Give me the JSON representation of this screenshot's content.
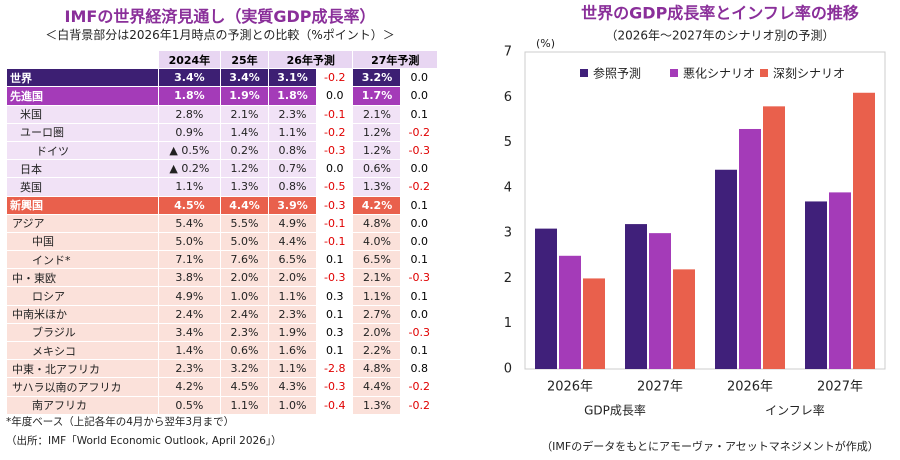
{
  "table": {
    "title": "IMFの世界経済見通し（実質GDP成長率）",
    "subtitle": "＜白背景部分は2026年1月時点の予測との比較（%ポイント）＞",
    "headers": [
      "2024年",
      "25年",
      "26年予測",
      "27年予測"
    ],
    "rows": [
      {
        "name": "世界",
        "values": [
          "3.4%",
          "3.4%",
          "3.1%",
          "-0.2",
          "3.2%",
          "0.0"
        ]
      },
      {
        "name": "先進国",
        "values": [
          "1.8%",
          "1.9%",
          "1.8%",
          "0.0",
          "1.7%",
          "0.0"
        ]
      },
      {
        "name": "米国",
        "values": [
          "2.8%",
          "2.1%",
          "2.3%",
          "-0.1",
          "2.1%",
          "0.1"
        ]
      },
      {
        "name": "ユーロ圏",
        "values": [
          "0.9%",
          "1.4%",
          "1.1%",
          "-0.2",
          "1.2%",
          "-0.2"
        ]
      },
      {
        "name": "ドイツ",
        "values": [
          "▲ 0.5%",
          "0.2%",
          "0.8%",
          "-0.3",
          "1.2%",
          "-0.3"
        ]
      },
      {
        "name": "日本",
        "values": [
          "▲ 0.2%",
          "1.2%",
          "0.7%",
          "0.0",
          "0.6%",
          "0.0"
        ]
      },
      {
        "name": "英国",
        "values": [
          "1.1%",
          "1.3%",
          "0.8%",
          "-0.5",
          "1.3%",
          "-0.2"
        ]
      },
      {
        "name": "新興国",
        "values": [
          "4.5%",
          "4.4%",
          "3.9%",
          "-0.3",
          "4.2%",
          "0.1"
        ]
      },
      {
        "name": "アジア",
        "values": [
          "5.4%",
          "5.5%",
          "4.9%",
          "-0.1",
          "4.8%",
          "0.0"
        ]
      },
      {
        "name": "中国",
        "values": [
          "5.0%",
          "5.0%",
          "4.4%",
          "-0.1",
          "4.0%",
          "0.0"
        ]
      },
      {
        "name": "インド*",
        "values": [
          "7.1%",
          "7.6%",
          "6.5%",
          "0.1",
          "6.5%",
          "0.1"
        ]
      },
      {
        "name": "中・東欧",
        "values": [
          "3.8%",
          "2.0%",
          "2.0%",
          "-0.3",
          "2.1%",
          "-0.3"
        ]
      },
      {
        "name": "ロシア",
        "values": [
          "4.9%",
          "1.0%",
          "1.1%",
          "0.3",
          "1.1%",
          "0.1"
        ]
      },
      {
        "name": "中南米ほか",
        "values": [
          "2.4%",
          "2.4%",
          "2.3%",
          "0.1",
          "2.7%",
          "0.0"
        ]
      },
      {
        "name": "ブラジル",
        "values": [
          "3.4%",
          "2.3%",
          "1.9%",
          "0.3",
          "2.0%",
          "-0.3"
        ]
      },
      {
        "name": "メキシコ",
        "values": [
          "1.4%",
          "0.6%",
          "1.6%",
          "0.1",
          "2.2%",
          "0.1"
        ]
      },
      {
        "name": "中東・北アフリカ",
        "values": [
          "2.3%",
          "3.2%",
          "1.1%",
          "-2.8",
          "4.8%",
          "0.8"
        ]
      },
      {
        "name": "サハラ以南のアフリカ",
        "values": [
          "4.2%",
          "4.5%",
          "4.3%",
          "-0.3",
          "4.4%",
          "-0.2"
        ]
      },
      {
        "name": "南アフリカ",
        "values": [
          "0.5%",
          "1.1%",
          "1.0%",
          "-0.4",
          "1.3%",
          "-0.2"
        ]
      }
    ],
    "footnotes": [
      "*年度ベース（上記各年の4月から翌年3月まで）",
      "（出所：IMF「World Economic Outlook, April 2026」）"
    ]
  },
  "chart_data": {
    "type": "bar",
    "title": "世界のGDP成長率とインフレ率の推移",
    "subtitle": "（2026年～2027年のシナリオ別の予測）",
    "y_unit": "(%)",
    "categories": [
      "2026年",
      "2027年",
      "2026年",
      "2027年"
    ],
    "group_labels": [
      "GDP成長率",
      "インフレ率"
    ],
    "series": [
      {
        "name": "参照予測",
        "color": "#40207a",
        "values": [
          3.1,
          3.2,
          4.4,
          3.7
        ]
      },
      {
        "name": "悪化シナリオ",
        "color": "#a43bb8",
        "values": [
          2.5,
          3.0,
          5.3,
          3.9
        ]
      },
      {
        "name": "深刻シナリオ",
        "color": "#e9604c",
        "values": [
          2.0,
          2.2,
          5.8,
          6.1
        ]
      }
    ],
    "ylim": [
      0,
      7
    ],
    "yticks": [
      0,
      1,
      2,
      3,
      4,
      5,
      6,
      7
    ],
    "grid": false,
    "note": "（IMFのデータをもとにアモーヴァ・アセットマネジメントが作成）"
  }
}
